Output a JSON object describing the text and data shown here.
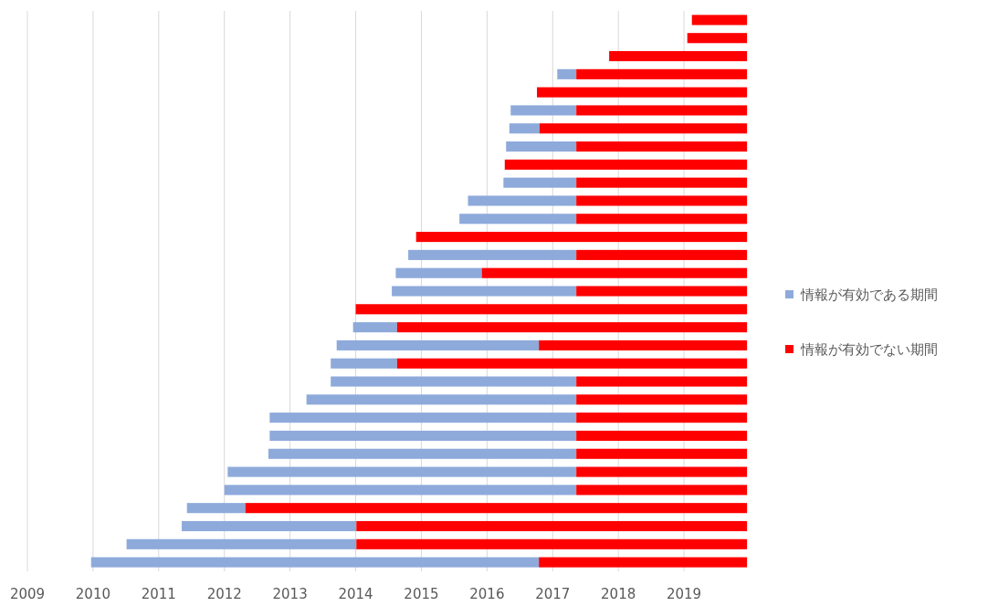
{
  "chart_data": {
    "type": "bar",
    "orientation": "horizontal",
    "categories": [
      null,
      null,
      null,
      null,
      null,
      null,
      null,
      null,
      null,
      null,
      null,
      null,
      null,
      null,
      null,
      null,
      null,
      null,
      null,
      null,
      null,
      null,
      null,
      null,
      null,
      null,
      null,
      null,
      null,
      null,
      null
    ],
    "series": [
      {
        "name": "情報が有効である期間",
        "color": "#8eaadb",
        "base": [
          null,
          null,
          null,
          2017.07,
          null,
          2016.36,
          2016.34,
          2016.29,
          null,
          2016.25,
          2015.71,
          2015.58,
          null,
          2014.8,
          2014.61,
          2014.55,
          null,
          2013.96,
          2013.71,
          2013.62,
          2013.62,
          2013.25,
          2012.69,
          2012.69,
          2012.67,
          2012.05,
          2012.0,
          2011.43,
          2011.35,
          2010.51,
          2009.97
        ],
        "values": [
          null,
          null,
          null,
          0.29,
          null,
          1.0,
          0.46,
          1.07,
          null,
          1.11,
          1.65,
          1.78,
          null,
          2.56,
          1.31,
          2.81,
          null,
          0.67,
          3.08,
          1.01,
          3.74,
          4.11,
          4.67,
          4.67,
          4.69,
          5.31,
          5.36,
          0.89,
          2.66,
          3.5,
          6.82
        ]
      },
      {
        "name": "情報が有効でない期間",
        "color": "#ff0000",
        "base": [
          2019.12,
          2019.05,
          2017.86,
          2017.36,
          2016.76,
          2017.36,
          2016.8,
          2017.36,
          2016.27,
          2017.36,
          2017.36,
          2017.36,
          2014.92,
          2017.36,
          2015.92,
          2017.36,
          2014.0,
          2014.63,
          2016.79,
          2014.63,
          2017.36,
          2017.36,
          2017.36,
          2017.36,
          2017.36,
          2017.36,
          2017.36,
          2012.32,
          2014.01,
          2014.01,
          2016.79
        ],
        "values": [
          0.84,
          0.91,
          2.1,
          2.6,
          3.2,
          2.6,
          3.16,
          2.6,
          3.69,
          2.6,
          2.6,
          2.6,
          5.04,
          2.6,
          4.04,
          2.6,
          5.96,
          5.33,
          3.17,
          5.33,
          2.6,
          2.6,
          2.6,
          2.6,
          2.6,
          2.6,
          2.6,
          7.64,
          5.95,
          5.95,
          3.17
        ]
      }
    ],
    "xlim": [
      2009,
      2020
    ],
    "xticks": [
      2009,
      2010,
      2011,
      2012,
      2013,
      2014,
      2015,
      2016,
      2017,
      2018,
      2019
    ],
    "grid": "x",
    "legend": "right",
    "tick_labels": "x"
  }
}
